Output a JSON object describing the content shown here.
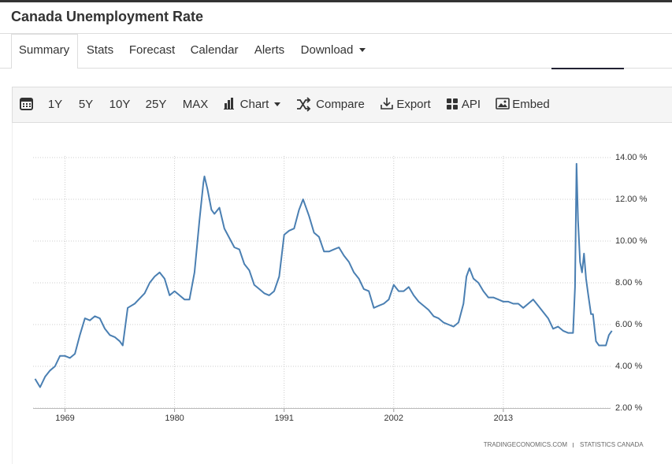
{
  "header": {
    "title": "Canada Unemployment Rate"
  },
  "tabs": [
    "Summary",
    "Stats",
    "Forecast",
    "Calendar",
    "Alerts",
    "Download"
  ],
  "toolbar": [
    "1Y",
    "5Y",
    "10Y",
    "25Y",
    "MAX",
    "Chart",
    "Compare",
    "Export",
    "API",
    "Embed"
  ],
  "chart_data": {
    "type": "line",
    "color": "#4a7fb2",
    "grid": true,
    "x": [
      1966.0,
      1966.5,
      1967.0,
      1967.5,
      1968.0,
      1968.5,
      1969.0,
      1969.5,
      1970.0,
      1970.5,
      1971.0,
      1971.5,
      1972.0,
      1972.5,
      1973.0,
      1973.5,
      1974.0,
      1974.5,
      1974.8,
      1975.3,
      1976.0,
      1977.0,
      1977.5,
      1978.0,
      1978.5,
      1979.0,
      1979.5,
      1980.0,
      1980.5,
      1981.0,
      1981.5,
      1982.0,
      1982.5,
      1982.9,
      1983.0,
      1983.3,
      1983.7,
      1984.0,
      1984.5,
      1985.0,
      1986.0,
      1986.5,
      1987.0,
      1987.5,
      1988.0,
      1988.5,
      1989.0,
      1989.5,
      1990.0,
      1990.5,
      1991.0,
      1991.5,
      1992.0,
      1992.5,
      1992.9,
      1993.2,
      1993.5,
      1994.0,
      1994.5,
      1995.0,
      1995.5,
      1996.0,
      1996.5,
      1997.0,
      1997.5,
      1998.0,
      1998.5,
      1999.0,
      1999.5,
      2000.0,
      2000.5,
      2001.0,
      2001.5,
      2002.0,
      2002.5,
      2003.0,
      2003.5,
      2004.0,
      2004.5,
      2005.0,
      2005.5,
      2006.0,
      2006.5,
      2007.0,
      2007.5,
      2008.0,
      2008.5,
      2009.0,
      2009.3,
      2009.6,
      2010.0,
      2010.5,
      2011.0,
      2011.5,
      2012.0,
      2012.5,
      2013.0,
      2013.5,
      2014.0,
      2014.5,
      2015.0,
      2015.5,
      2016.0,
      2016.5,
      2017.0,
      2017.5,
      2018.0,
      2018.5,
      2019.0,
      2019.5,
      2020.0,
      2020.2,
      2020.35,
      2020.5,
      2020.7,
      2020.9,
      2021.1,
      2021.3,
      2021.5,
      2021.8,
      2022.0,
      2022.3,
      2022.6,
      2022.9,
      2023.3,
      2023.6,
      2023.9
    ],
    "values": [
      3.4,
      3.0,
      3.5,
      3.8,
      4.0,
      4.5,
      4.5,
      4.4,
      4.6,
      5.5,
      6.3,
      6.2,
      6.4,
      6.3,
      5.8,
      5.5,
      5.4,
      5.2,
      5.0,
      6.8,
      7.0,
      7.5,
      8.0,
      8.3,
      8.5,
      8.2,
      7.4,
      7.6,
      7.4,
      7.2,
      7.2,
      8.5,
      11.0,
      12.8,
      13.1,
      12.5,
      11.5,
      11.3,
      11.6,
      10.6,
      9.7,
      9.6,
      8.9,
      8.6,
      7.9,
      7.7,
      7.5,
      7.4,
      7.6,
      8.3,
      10.3,
      10.5,
      10.6,
      11.5,
      12.0,
      11.6,
      11.2,
      10.4,
      10.2,
      9.5,
      9.5,
      9.6,
      9.7,
      9.3,
      9.0,
      8.5,
      8.2,
      7.7,
      7.6,
      6.8,
      6.9,
      7.0,
      7.2,
      7.9,
      7.6,
      7.6,
      7.8,
      7.4,
      7.1,
      6.9,
      6.7,
      6.4,
      6.3,
      6.1,
      6.0,
      5.9,
      6.1,
      7.0,
      8.3,
      8.7,
      8.2,
      8.0,
      7.6,
      7.3,
      7.3,
      7.2,
      7.1,
      7.1,
      7.0,
      7.0,
      6.8,
      7.0,
      7.2,
      6.9,
      6.6,
      6.3,
      5.8,
      5.9,
      5.7,
      5.6,
      5.6,
      7.8,
      13.7,
      11.0,
      9.0,
      8.5,
      9.4,
      8.2,
      7.5,
      6.5,
      6.5,
      5.2,
      5.0,
      5.0,
      5.0,
      5.5,
      5.7
    ],
    "xlim": [
      1965.8,
      2024.0
    ],
    "xticks": [
      1969,
      1980,
      1991,
      2002,
      2013
    ],
    "ylim": [
      2,
      14
    ],
    "yticks": [
      {
        "value": 2,
        "label": "2.00 %"
      },
      {
        "value": 4,
        "label": "4.00 %"
      },
      {
        "value": 6,
        "label": "6.00 %"
      },
      {
        "value": 8,
        "label": "8.00 %"
      },
      {
        "value": 10,
        "label": "10.00 %"
      },
      {
        "value": 12,
        "label": "12.00 %"
      },
      {
        "value": 14,
        "label": "14.00 %"
      }
    ],
    "source": [
      "TRADINGECONOMICS.COM",
      "STATISTICS CANADA"
    ]
  }
}
